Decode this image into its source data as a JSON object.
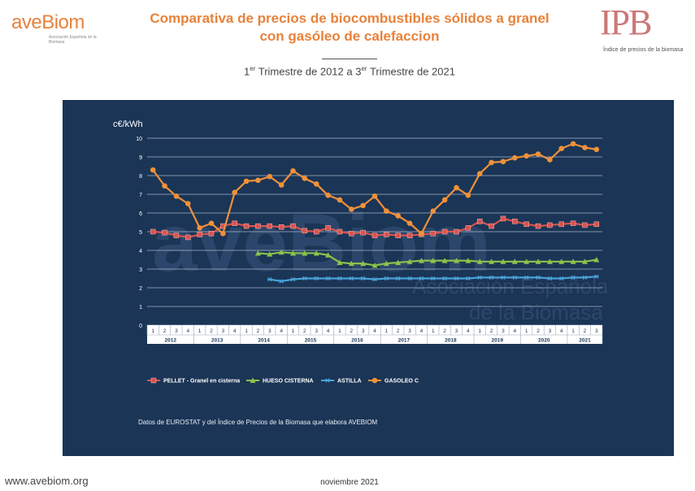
{
  "header": {
    "brand_left": "aveBiom",
    "brand_left_tagline": "Asociación Española de la Biomasa",
    "title_line1": "Comparativa de precios de biocombustibles sólidos a granel",
    "title_line2": "con gasóleo de calefaccion",
    "subtitle_a": "1",
    "subtitle_a_sup": "er",
    "subtitle_b": " Trimestre de 2012 a 3",
    "subtitle_b_sup": "er",
    "subtitle_c": " Trimestre de 2021",
    "brand_right": "IPB",
    "brand_right_sub": "Índice de precios de la biomasa"
  },
  "footer": {
    "url": "www.avebiom.org",
    "date": "noviembre 2021",
    "source_note": "Datos de EUROSTAT y del Índice de Precios de la Biomasa que elabora AVEBIOM"
  },
  "watermark": {
    "brand": "aveBiom",
    "line1": "Asociación Española",
    "line2": "de la Biomasa"
  },
  "colors": {
    "panel_bg": "#1b3556",
    "pellet": "#d9534f",
    "hueso": "#8bc34a",
    "astilla": "#4aa3d8",
    "gasoleo": "#f0913a",
    "title": "#e8823a"
  },
  "chart_data": {
    "type": "line",
    "ylabel": "c€/kWh",
    "ylim": [
      0,
      10
    ],
    "yticks": [
      0,
      1,
      2,
      3,
      4,
      5,
      6,
      7,
      8,
      9,
      10
    ],
    "grid": true,
    "legend_position": "bottom",
    "years": [
      "2012",
      "2013",
      "2014",
      "2015",
      "2016",
      "2017",
      "2018",
      "2019",
      "2020",
      "2021"
    ],
    "quarters": [
      "1",
      "2",
      "3",
      "4",
      "1",
      "2",
      "3",
      "4",
      "1",
      "2",
      "3",
      "4",
      "1",
      "2",
      "3",
      "4",
      "1",
      "2",
      "3",
      "4",
      "1",
      "2",
      "3",
      "4",
      "1",
      "2",
      "3",
      "4",
      "1",
      "2",
      "3",
      "4",
      "1",
      "2",
      "3",
      "4",
      "1",
      "2",
      "3"
    ],
    "series": [
      {
        "name": "PELLET - Granel en cisterna",
        "marker": "square",
        "values": [
          5.0,
          4.95,
          4.8,
          4.7,
          4.85,
          4.9,
          5.3,
          5.45,
          5.3,
          5.3,
          5.3,
          5.25,
          5.3,
          5.05,
          5.0,
          5.2,
          5.0,
          4.9,
          4.95,
          4.8,
          4.85,
          4.8,
          4.8,
          4.85,
          4.9,
          5.0,
          5.0,
          5.2,
          5.55,
          5.3,
          5.7,
          5.55,
          5.4,
          5.3,
          5.35,
          5.4,
          5.45,
          5.35,
          5.4
        ]
      },
      {
        "name": "HUESO CISTERNA",
        "marker": "triangle",
        "values": [
          null,
          null,
          null,
          null,
          null,
          null,
          null,
          null,
          null,
          3.85,
          3.8,
          3.9,
          3.85,
          3.85,
          3.85,
          3.75,
          3.35,
          3.3,
          3.3,
          3.2,
          3.3,
          3.35,
          3.4,
          3.45,
          3.45,
          3.45,
          3.45,
          3.45,
          3.4,
          3.4,
          3.4,
          3.4,
          3.4,
          3.4,
          3.4,
          3.4,
          3.4,
          3.4,
          3.5
        ]
      },
      {
        "name": "ASTILLA",
        "marker": "star",
        "values": [
          null,
          null,
          null,
          null,
          null,
          null,
          null,
          null,
          null,
          null,
          2.45,
          2.35,
          2.45,
          2.5,
          2.5,
          2.5,
          2.5,
          2.5,
          2.5,
          2.45,
          2.5,
          2.5,
          2.5,
          2.5,
          2.5,
          2.5,
          2.5,
          2.5,
          2.55,
          2.55,
          2.55,
          2.55,
          2.55,
          2.55,
          2.5,
          2.5,
          2.55,
          2.55,
          2.6
        ]
      },
      {
        "name": "GASOLEO C",
        "marker": "circle",
        "values": [
          8.3,
          7.45,
          6.9,
          6.5,
          5.2,
          5.45,
          4.9,
          7.1,
          7.7,
          7.75,
          7.95,
          7.5,
          8.25,
          7.85,
          7.55,
          6.95,
          6.7,
          6.2,
          6.4,
          6.9,
          6.1,
          5.85,
          5.45,
          4.9,
          6.1,
          6.7,
          7.35,
          6.95,
          8.1,
          8.7,
          8.75,
          8.95,
          9.05,
          9.15,
          8.85,
          9.45,
          9.7,
          9.5,
          9.4
        ]
      }
    ]
  }
}
